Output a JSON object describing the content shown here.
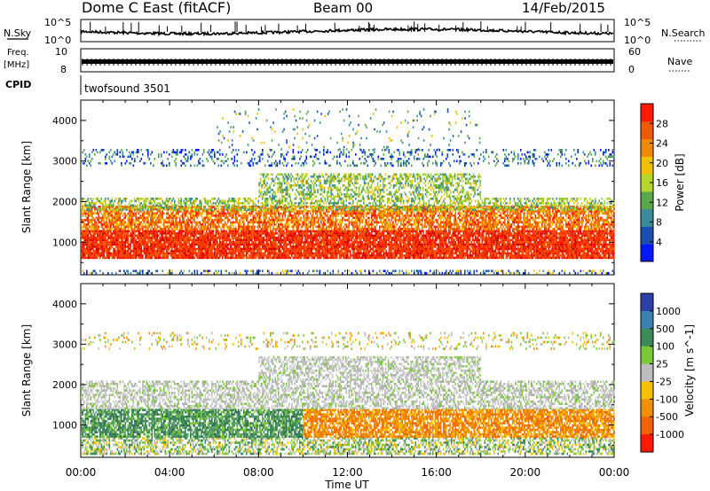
{
  "header": {
    "station": "Dome C East (fitACF)",
    "beam": "Beam 00",
    "date": "14/Feb/2015"
  },
  "top_panels": {
    "nsky_label": "N.Sky",
    "nsky_ticks": [
      "10^5",
      "10^0"
    ],
    "nsearch_label": "N.Search",
    "nsearch_ticks": [
      "10^5",
      "10^0"
    ],
    "freq_label": "Freq.",
    "freq_unit": "[MHz]",
    "freq_ticks": [
      "10",
      "8"
    ],
    "nave_label": "Nave",
    "nave_ticks": [
      "60",
      "0"
    ],
    "cpid_label": "CPID",
    "cpid_value": "twofsound 3501"
  },
  "colors": {
    "power_scale": [
      "#0018ff",
      "#1a4fb0",
      "#3a8a9a",
      "#5aa84a",
      "#b6d62c",
      "#f0c000",
      "#f08a00",
      "#ee5a00",
      "#ff1a00"
    ],
    "velocity_scale": [
      "#2e40a8",
      "#3a80b0",
      "#3a8a5a",
      "#7bc83a",
      "#bcbcbc",
      "#f5c000",
      "#f09000",
      "#f06400",
      "#ff1a00"
    ]
  },
  "chart_data": [
    {
      "type": "heatmap",
      "name": "power-panel",
      "ylabel": "Slant Range [km]",
      "ylim": [
        200,
        4500
      ],
      "yticks": [
        1000,
        2000,
        3000,
        4000
      ],
      "xlim": [
        0,
        24
      ],
      "colorbar": {
        "label": "Power [dB]",
        "ticks": [
          4,
          8,
          12,
          16,
          20,
          24,
          28
        ],
        "range": [
          0,
          32
        ]
      },
      "bands": [
        {
          "range": [
            250,
            320
          ],
          "t": [
            0,
            24
          ],
          "level": "weak-mixed"
        },
        {
          "range": [
            600,
            1300
          ],
          "t": [
            0,
            24
          ],
          "level": "strong-red"
        },
        {
          "range": [
            1300,
            1900
          ],
          "t": [
            0,
            24
          ],
          "level": "orange-red"
        },
        {
          "range": [
            1800,
            2100
          ],
          "t": [
            0,
            24
          ],
          "level": "green-yellow"
        },
        {
          "range": [
            2100,
            2700
          ],
          "t": [
            8,
            18
          ],
          "level": "green-yellow"
        },
        {
          "range": [
            2900,
            3300
          ],
          "t": [
            0,
            24
          ],
          "level": "sparse-blue-green"
        },
        {
          "range": [
            3300,
            4300
          ],
          "t": [
            6,
            18
          ],
          "level": "sparse"
        }
      ]
    },
    {
      "type": "heatmap",
      "name": "velocity-panel",
      "ylabel": "Slant Range [km]",
      "xlabel": "Time UT",
      "ylim": [
        200,
        4500
      ],
      "yticks": [
        1000,
        2000,
        3000,
        4000
      ],
      "xlim": [
        0,
        24
      ],
      "xticks": [
        "00:00",
        "04:00",
        "08:00",
        "12:00",
        "16:00",
        "20:00",
        "00:00"
      ],
      "colorbar": {
        "label": "Velocity [m s^-1]",
        "ticks": [
          1000,
          500,
          100,
          25,
          -25,
          -100,
          -500,
          -1000
        ]
      },
      "bands": [
        {
          "range": [
            300,
            700
          ],
          "t": [
            0,
            24
          ],
          "level": "green-gray"
        },
        {
          "range": [
            700,
            1400
          ],
          "t": [
            0,
            10
          ],
          "level": "green"
        },
        {
          "range": [
            700,
            1400
          ],
          "t": [
            10,
            24
          ],
          "level": "orange"
        },
        {
          "range": [
            1400,
            2100
          ],
          "t": [
            0,
            24
          ],
          "level": "gray"
        },
        {
          "range": [
            2100,
            2700
          ],
          "t": [
            8,
            18
          ],
          "level": "gray"
        },
        {
          "range": [
            2900,
            3300
          ],
          "t": [
            0,
            24
          ],
          "level": "sparse-orange"
        }
      ]
    }
  ]
}
